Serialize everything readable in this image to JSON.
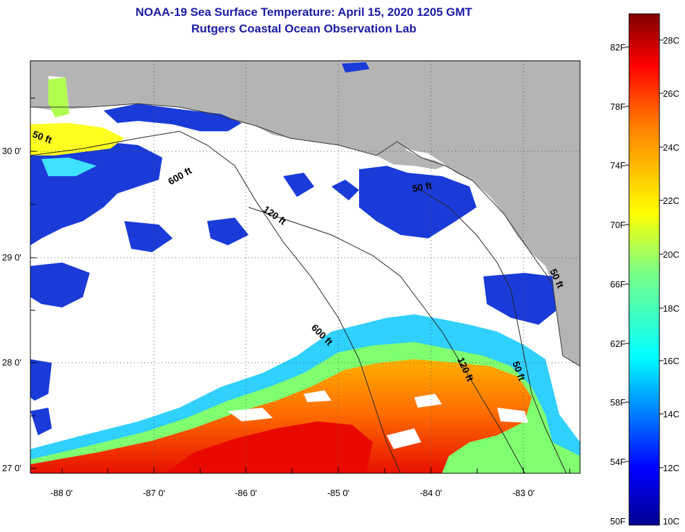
{
  "title": {
    "line1": "NOAA-19 Sea Surface Temperature:  April 15, 2020 1205 GMT",
    "line2": "Rutgers Coastal Ocean Observation Lab"
  },
  "map": {
    "lat_labels": [
      "30 0'",
      "29 0'",
      "28 0'",
      "27 0'"
    ],
    "lon_labels": [
      "-88 0'",
      "-87 0'",
      "-86 0'",
      "-85 0'",
      "-84 0'",
      "-83 0'"
    ],
    "contour_labels": [
      "50 ft",
      "600 ft",
      "120 ft",
      "50 ft",
      "600 ft",
      "120 ft",
      "50 ft",
      "50 ft"
    ],
    "land_color": "#b4b4b4",
    "cloud_color": "#ffffff"
  },
  "colorbar": {
    "fahrenheit_labels": [
      "82F",
      "78F",
      "74F",
      "70F",
      "66F",
      "62F",
      "58F",
      "54F",
      "50F"
    ],
    "celsius_labels": [
      "28C",
      "26C",
      "24C",
      "22C",
      "20C",
      "18C",
      "16C",
      "14C",
      "12C",
      "10C"
    ],
    "colors": [
      "#00008f",
      "#0000ff",
      "#0080ff",
      "#00ffff",
      "#80ff80",
      "#ffff00",
      "#ff8000",
      "#ff0000",
      "#800000"
    ]
  }
}
